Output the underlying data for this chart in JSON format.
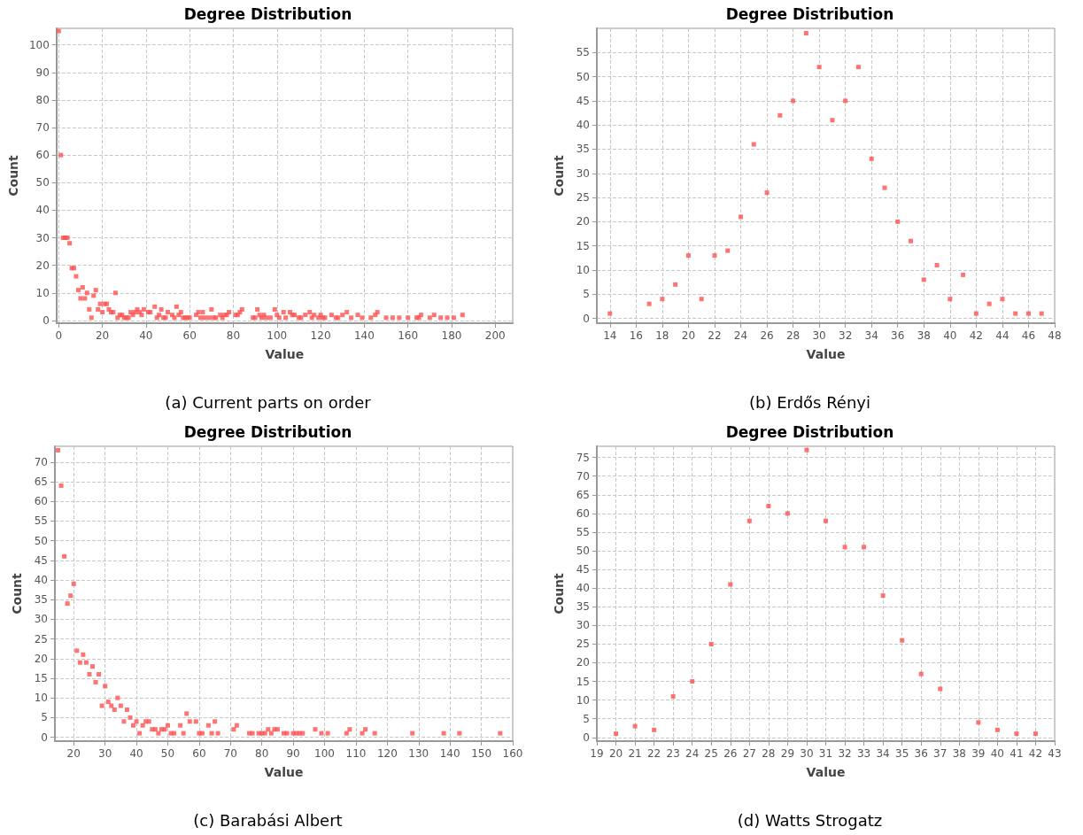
{
  "chart_data": [
    {
      "type": "scatter",
      "title": "Degree Distribution",
      "xlabel": "Value",
      "ylabel": "Count",
      "annotations": [
        "(a) Current parts on order"
      ],
      "color": "#ff5050",
      "marker": "square",
      "grid": true,
      "xlim": [
        -1,
        208
      ],
      "ylim": [
        -1,
        106
      ],
      "xticks": [
        0,
        20,
        40,
        60,
        80,
        100,
        120,
        140,
        160,
        180,
        200
      ],
      "yticks": [
        0,
        10,
        20,
        30,
        40,
        50,
        60,
        70,
        80,
        90,
        100
      ],
      "x": [
        0,
        1,
        2,
        3,
        4,
        5,
        6,
        7,
        8,
        9,
        10,
        11,
        12,
        13,
        14,
        15,
        16,
        17,
        18,
        19,
        20,
        21,
        22,
        23,
        24,
        25,
        26,
        27,
        28,
        29,
        30,
        31,
        32,
        33,
        34,
        35,
        36,
        37,
        38,
        39,
        41,
        42,
        44,
        45,
        46,
        47,
        48,
        49,
        50,
        52,
        53,
        54,
        55,
        56,
        57,
        58,
        59,
        60,
        63,
        64,
        65,
        66,
        67,
        69,
        70,
        71,
        72,
        74,
        75,
        76,
        77,
        78,
        81,
        82,
        83,
        84,
        89,
        90,
        91,
        92,
        93,
        94,
        95,
        97,
        99,
        100,
        101,
        103,
        104,
        106,
        107,
        108,
        110,
        111,
        113,
        115,
        116,
        117,
        119,
        120,
        121,
        122,
        125,
        127,
        128,
        130,
        132,
        134,
        137,
        139,
        143,
        145,
        146,
        150,
        153,
        156,
        160,
        164,
        165,
        166,
        170,
        172,
        175,
        178,
        181,
        185
      ],
      "values": [
        105,
        60,
        30,
        30,
        30,
        28,
        19,
        19,
        16,
        11,
        8,
        12,
        8,
        10,
        4,
        1,
        9,
        11,
        4,
        6,
        3,
        6,
        6,
        4,
        3,
        3,
        10,
        1,
        2,
        2,
        1,
        1,
        1,
        3,
        2,
        3,
        4,
        3,
        2,
        4,
        3,
        3,
        5,
        1,
        2,
        4,
        1,
        1,
        3,
        2,
        1,
        5,
        2,
        3,
        1,
        1,
        1,
        1,
        2,
        3,
        1,
        3,
        1,
        1,
        4,
        1,
        1,
        2,
        1,
        2,
        2,
        3,
        2,
        2,
        3,
        4,
        1,
        1,
        4,
        2,
        1,
        2,
        1,
        1,
        4,
        2,
        1,
        3,
        1,
        3,
        2,
        2,
        1,
        1,
        2,
        3,
        1,
        2,
        1,
        2,
        1,
        1,
        2,
        1,
        1,
        2,
        3,
        1,
        2,
        1,
        1,
        2,
        3,
        1,
        1,
        1,
        1,
        1,
        1,
        2,
        1,
        2,
        1,
        1,
        1,
        2
      ]
    },
    {
      "type": "scatter",
      "title": "Degree Distribution",
      "xlabel": "Value",
      "ylabel": "Count",
      "annotations": [
        "(b) Erdős Rényi"
      ],
      "color": "#ff5050",
      "marker": "square",
      "grid": true,
      "xlim": [
        13,
        48
      ],
      "ylim": [
        -1,
        60
      ],
      "xticks": [
        14,
        16,
        18,
        20,
        22,
        24,
        26,
        28,
        30,
        32,
        34,
        36,
        38,
        40,
        42,
        44,
        46,
        48
      ],
      "yticks": [
        0,
        5,
        10,
        15,
        20,
        25,
        30,
        35,
        40,
        45,
        50,
        55
      ],
      "x": [
        14,
        17,
        18,
        19,
        20,
        21,
        22,
        23,
        24,
        25,
        26,
        27,
        28,
        29,
        30,
        31,
        32,
        33,
        34,
        35,
        36,
        37,
        38,
        39,
        40,
        41,
        42,
        43,
        44,
        45,
        46,
        47
      ],
      "values": [
        1,
        3,
        4,
        7,
        13,
        4,
        13,
        14,
        21,
        36,
        26,
        42,
        45,
        59,
        52,
        41,
        45,
        52,
        33,
        27,
        20,
        16,
        8,
        11,
        4,
        9,
        1,
        3,
        4,
        1,
        1,
        1
      ]
    },
    {
      "type": "scatter",
      "title": "Degree Distribution",
      "xlabel": "Value",
      "ylabel": "Count",
      "annotations": [
        "(c) Barabási Albert"
      ],
      "color": "#ff5050",
      "marker": "square",
      "grid": true,
      "xlim": [
        14,
        160
      ],
      "ylim": [
        -1,
        74
      ],
      "xticks": [
        20,
        30,
        40,
        50,
        60,
        70,
        80,
        90,
        100,
        110,
        120,
        130,
        140,
        150,
        160
      ],
      "yticks": [
        0,
        5,
        10,
        15,
        20,
        25,
        30,
        35,
        40,
        45,
        50,
        55,
        60,
        65,
        70
      ],
      "x": [
        15,
        16,
        17,
        18,
        19,
        20,
        21,
        22,
        23,
        24,
        25,
        26,
        27,
        28,
        29,
        30,
        31,
        32,
        33,
        34,
        35,
        36,
        37,
        38,
        39,
        40,
        41,
        42,
        43,
        44,
        45,
        46,
        47,
        48,
        49,
        50,
        51,
        52,
        54,
        55,
        56,
        57,
        59,
        60,
        61,
        63,
        64,
        65,
        66,
        71,
        72,
        76,
        77,
        79,
        80,
        81,
        82,
        83,
        84,
        85,
        87,
        88,
        90,
        91,
        92,
        93,
        97,
        99,
        101,
        107,
        108,
        112,
        113,
        116,
        128,
        138,
        143,
        156
      ],
      "values": [
        73,
        64,
        46,
        34,
        36,
        39,
        22,
        19,
        21,
        19,
        16,
        18,
        14,
        16,
        8,
        13,
        9,
        8,
        7,
        10,
        8,
        4,
        7,
        5,
        3,
        4,
        1,
        3,
        4,
        4,
        2,
        2,
        1,
        2,
        2,
        3,
        1,
        1,
        3,
        1,
        6,
        4,
        4,
        1,
        1,
        3,
        1,
        4,
        1,
        2,
        3,
        1,
        1,
        1,
        1,
        1,
        2,
        1,
        2,
        2,
        1,
        1,
        1,
        1,
        1,
        1,
        2,
        1,
        1,
        1,
        2,
        1,
        2,
        1,
        1,
        1,
        1,
        1
      ]
    },
    {
      "type": "scatter",
      "title": "Degree Distribution",
      "xlabel": "Value",
      "ylabel": "Count",
      "annotations": [
        "(d) Watts Strogatz"
      ],
      "color": "#ff5050",
      "marker": "square",
      "grid": true,
      "xlim": [
        19,
        43
      ],
      "ylim": [
        -1,
        78
      ],
      "xticks": [
        19,
        20,
        21,
        22,
        23,
        24,
        25,
        26,
        27,
        28,
        29,
        30,
        31,
        32,
        33,
        34,
        35,
        36,
        37,
        38,
        39,
        40,
        41,
        42,
        43
      ],
      "yticks": [
        0,
        5,
        10,
        15,
        20,
        25,
        30,
        35,
        40,
        45,
        50,
        55,
        60,
        65,
        70,
        75
      ],
      "x": [
        20,
        21,
        22,
        23,
        24,
        25,
        26,
        27,
        28,
        29,
        30,
        31,
        32,
        33,
        34,
        35,
        36,
        37,
        39,
        40,
        41,
        42
      ],
      "values": [
        1,
        3,
        2,
        11,
        15,
        25,
        41,
        58,
        62,
        60,
        77,
        58,
        51,
        51,
        38,
        26,
        17,
        13,
        4,
        2,
        1,
        1
      ]
    }
  ]
}
